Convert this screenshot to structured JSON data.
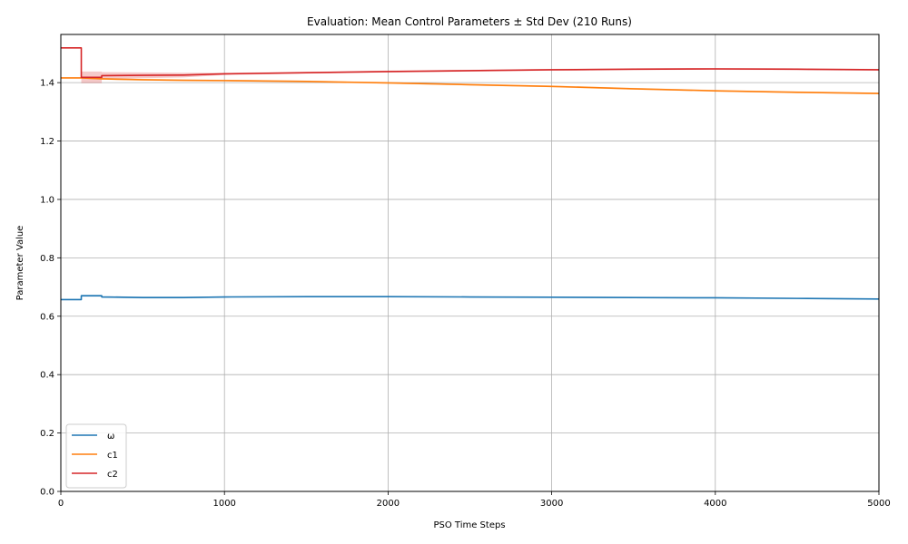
{
  "chart_data": {
    "type": "line",
    "title": "Evaluation: Mean Control Parameters ± Std Dev (210 Runs)",
    "xlabel": "PSO Time Steps",
    "ylabel": "Parameter Value",
    "xlim": [
      0,
      5000
    ],
    "ylim": [
      0,
      1.565
    ],
    "xticks": [
      0,
      1000,
      2000,
      3000,
      4000,
      5000
    ],
    "yticks": [
      0.0,
      0.2,
      0.4,
      0.6,
      0.8,
      1.0,
      1.2,
      1.4
    ],
    "ytick_labels": [
      "0.0",
      "0.2",
      "0.4",
      "0.6",
      "0.8",
      "1.0",
      "1.2",
      "1.4"
    ],
    "grid": true,
    "legend_position": "lower-left",
    "series": [
      {
        "name": "ω",
        "color": "#1f77b4",
        "x": [
          0,
          125,
          125,
          250,
          250,
          500,
          750,
          1000,
          1500,
          2000,
          2500,
          3000,
          3500,
          4000,
          4500,
          5000
        ],
        "y": [
          0.657,
          0.657,
          0.67,
          0.67,
          0.666,
          0.664,
          0.664,
          0.666,
          0.667,
          0.667,
          0.666,
          0.665,
          0.664,
          0.663,
          0.661,
          0.659
        ],
        "std": [
          0.001,
          0.001,
          0.003,
          0.003,
          0.003,
          0.003,
          0.003,
          0.002,
          0.002,
          0.002,
          0.002,
          0.002,
          0.002,
          0.002,
          0.002,
          0.002
        ]
      },
      {
        "name": "c1",
        "color": "#ff7f0e",
        "x": [
          0,
          125,
          250,
          500,
          750,
          1000,
          1500,
          2000,
          2500,
          3000,
          3500,
          4000,
          4500,
          5000
        ],
        "y": [
          1.416,
          1.416,
          1.413,
          1.41,
          1.408,
          1.407,
          1.404,
          1.399,
          1.393,
          1.387,
          1.379,
          1.372,
          1.367,
          1.363
        ],
        "std": [
          0.002,
          0.002,
          0.003,
          0.003,
          0.003,
          0.003,
          0.003,
          0.003,
          0.003,
          0.003,
          0.003,
          0.003,
          0.003,
          0.003
        ]
      },
      {
        "name": "c2",
        "color": "#d62728",
        "x": [
          0,
          125,
          125,
          250,
          250,
          500,
          750,
          1000,
          1500,
          2000,
          2500,
          3000,
          3500,
          4000,
          4500,
          5000
        ],
        "y": [
          1.519,
          1.519,
          1.418,
          1.418,
          1.424,
          1.425,
          1.426,
          1.43,
          1.434,
          1.438,
          1.441,
          1.444,
          1.446,
          1.447,
          1.446,
          1.444
        ],
        "std": [
          0.002,
          0.002,
          0.02,
          0.02,
          0.012,
          0.01,
          0.008,
          0.004,
          0.003,
          0.003,
          0.003,
          0.003,
          0.003,
          0.003,
          0.003,
          0.003
        ]
      }
    ]
  }
}
